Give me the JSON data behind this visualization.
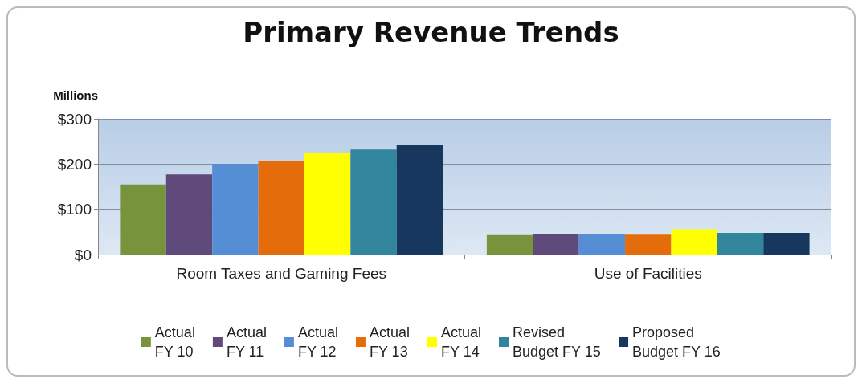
{
  "chart_data": {
    "type": "bar",
    "title": "Primary Revenue Trends",
    "ylabel": "Millions",
    "categories": [
      "Room Taxes and Gaming Fees",
      "Use of Facilities"
    ],
    "series": [
      {
        "name": "Actual\nFY 10",
        "color": "#77933c",
        "values": [
          155,
          43
        ]
      },
      {
        "name": "Actual\nFY 11",
        "color": "#604a7b",
        "values": [
          177,
          45
        ]
      },
      {
        "name": "Actual\nFY 12",
        "color": "#558ed5",
        "values": [
          200,
          45
        ]
      },
      {
        "name": "Actual\nFY 13",
        "color": "#e46c0a",
        "values": [
          206,
          44
        ]
      },
      {
        "name": "Actual\nFY 14",
        "color": "#ffff00",
        "values": [
          224,
          56
        ]
      },
      {
        "name": "Revised\nBudget FY 15",
        "color": "#31859c",
        "values": [
          232,
          48
        ]
      },
      {
        "name": "Proposed\nBudget FY 16",
        "color": "#17375e",
        "values": [
          242,
          48
        ]
      }
    ],
    "ylim": [
      0,
      300
    ],
    "yticks": [
      {
        "value": 0,
        "label": "$0"
      },
      {
        "value": 100,
        "label": "$100"
      },
      {
        "value": 200,
        "label": "$200"
      },
      {
        "value": 300,
        "label": "$300"
      }
    ],
    "grid": "y",
    "legend": "bottom"
  }
}
